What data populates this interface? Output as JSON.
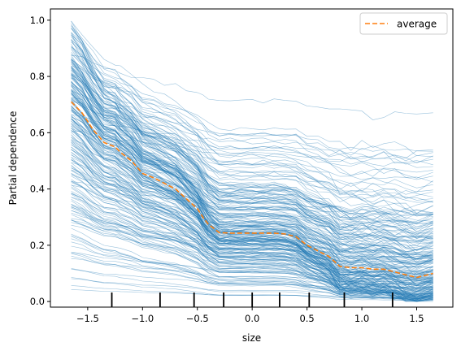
{
  "chart_data": {
    "type": "line",
    "xlabel": "size",
    "ylabel": "Partial dependence",
    "xlim": [
      -1.84,
      1.83
    ],
    "ylim": [
      -0.02,
      1.04
    ],
    "x_ticks": [
      -1.5,
      -1.0,
      -0.5,
      0.0,
      0.5,
      1.0,
      1.5
    ],
    "x_tick_labels": [
      "−1.5",
      "−1.0",
      "−0.5",
      "0.0",
      "0.5",
      "1.0",
      "1.5"
    ],
    "y_ticks": [
      0.0,
      0.2,
      0.4,
      0.6,
      0.8,
      1.0
    ],
    "y_tick_labels": [
      "0.0",
      "0.2",
      "0.4",
      "0.6",
      "0.8",
      "1.0"
    ],
    "grid": false,
    "legend": {
      "position": "upper right",
      "entries": [
        "average"
      ]
    },
    "deciles_x": [
      -1.28,
      -0.84,
      -0.53,
      -0.26,
      0.0,
      0.25,
      0.52,
      0.84,
      1.28
    ],
    "average_curve": {
      "name": "average",
      "color": "#ff7f0e",
      "style": "dashed",
      "x": [
        -1.65,
        -1.55,
        -1.45,
        -1.35,
        -1.25,
        -1.2,
        -1.1,
        -1.0,
        -0.9,
        -0.8,
        -0.7,
        -0.6,
        -0.5,
        -0.45,
        -0.4,
        -0.3,
        -0.2,
        -0.1,
        0.0,
        0.1,
        0.2,
        0.3,
        0.4,
        0.5,
        0.6,
        0.7,
        0.8,
        0.9,
        1.0,
        1.1,
        1.2,
        1.3,
        1.4,
        1.5,
        1.65
      ],
      "y": [
        0.71,
        0.67,
        0.61,
        0.565,
        0.55,
        0.53,
        0.5,
        0.455,
        0.44,
        0.42,
        0.4,
        0.365,
        0.33,
        0.3,
        0.275,
        0.245,
        0.243,
        0.243,
        0.243,
        0.243,
        0.243,
        0.24,
        0.23,
        0.2,
        0.18,
        0.16,
        0.125,
        0.12,
        0.12,
        0.115,
        0.115,
        0.105,
        0.095,
        0.085,
        0.1
      ]
    },
    "ice_curves": {
      "color": "#1f77b4",
      "count": 240,
      "x": [
        -1.65,
        -1.55,
        -1.45,
        -1.35,
        -1.25,
        -1.2,
        -1.1,
        -1.0,
        -0.9,
        -0.8,
        -0.7,
        -0.6,
        -0.5,
        -0.45,
        -0.4,
        -0.3,
        -0.2,
        -0.1,
        0.0,
        0.1,
        0.2,
        0.3,
        0.4,
        0.5,
        0.6,
        0.7,
        0.8,
        0.9,
        1.0,
        1.1,
        1.2,
        1.3,
        1.4,
        1.5,
        1.65
      ]
    }
  }
}
